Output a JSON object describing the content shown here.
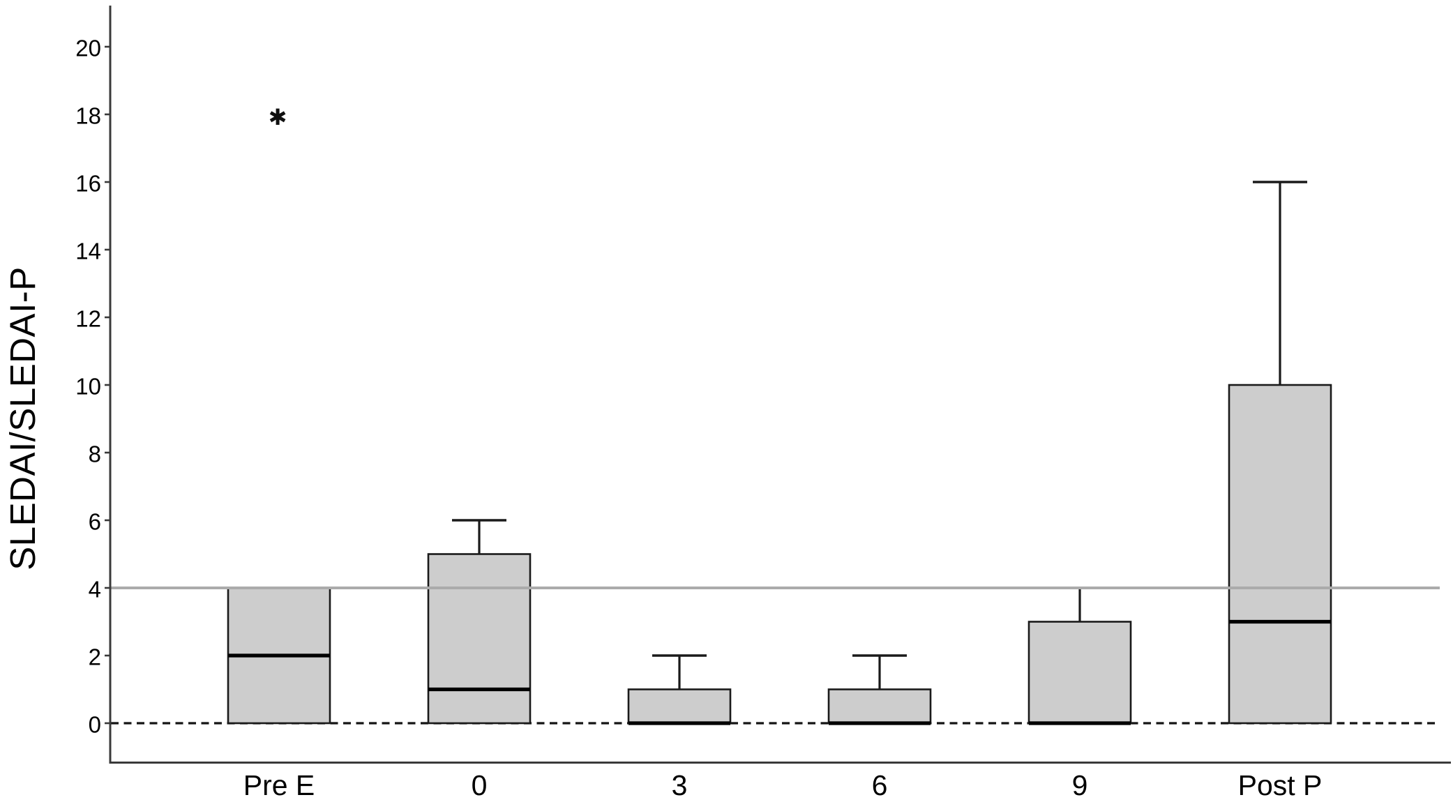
{
  "figure": {
    "background_color": "#ffffff",
    "title": "",
    "xlabel": ""
  },
  "chart_data": {
    "type": "boxplot",
    "title": "",
    "xlabel": "",
    "ylabel": "SLEDAI/SLEDAI-P",
    "categories": [
      "Pre E",
      "0",
      "3",
      "6",
      "9",
      "Post P"
    ],
    "yticks": [
      0,
      2,
      4,
      6,
      8,
      10,
      12,
      14,
      16,
      18,
      20
    ],
    "ylim": [
      -1.2,
      21.2
    ],
    "grid": "off",
    "legend": "none",
    "series": [
      {
        "category": "Pre E",
        "min": 0,
        "q1": 0,
        "median": 2,
        "q3": 4,
        "max": 4,
        "outliers": [
          {
            "value": 18,
            "type": "extreme",
            "symbol": "✱"
          }
        ]
      },
      {
        "category": "0",
        "min": 0,
        "q1": 0,
        "median": 1,
        "q3": 5,
        "max": 6,
        "outliers": []
      },
      {
        "category": "3",
        "min": 0,
        "q1": 0,
        "median": 0,
        "q3": 1,
        "max": 2,
        "outliers": []
      },
      {
        "category": "6",
        "min": 0,
        "q1": 0,
        "median": 0,
        "q3": 1,
        "max": 2,
        "outliers": []
      },
      {
        "category": "9",
        "min": 0,
        "q1": 0,
        "median": 0,
        "q3": 3,
        "max": 4,
        "outliers": []
      },
      {
        "category": "Post P",
        "min": 0,
        "q1": 0,
        "median": 3,
        "q3": 10,
        "max": 16,
        "outliers": []
      }
    ],
    "reference_lines": [
      {
        "value": 0,
        "style": "dashed",
        "color": "#141414"
      },
      {
        "value": 4,
        "style": "solid",
        "color": "#ababab"
      }
    ],
    "colors": {
      "box_fill": "#cdcdcd",
      "box_border": "#1a1a1a",
      "median": "#000000",
      "whisker": "#1a1a1a",
      "axis": "#3a3a3a",
      "background": "#ffffff"
    }
  }
}
